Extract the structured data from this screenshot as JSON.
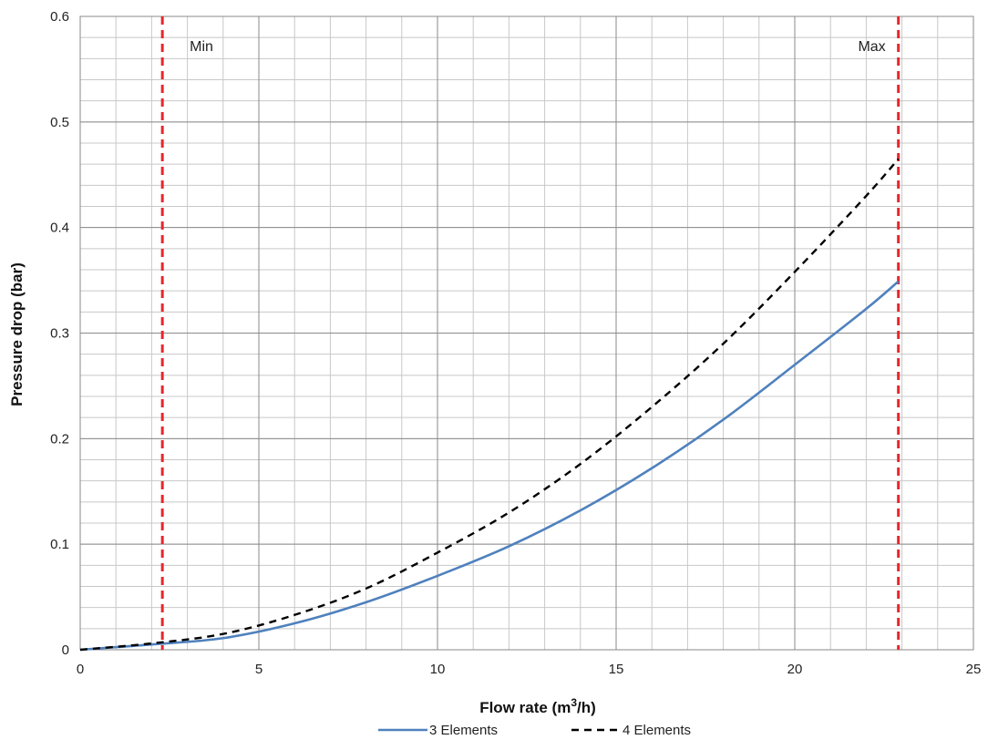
{
  "chart_data": {
    "type": "line",
    "xlabel_main": "Flow rate (m",
    "xlabel_sup": "3",
    "xlabel_end": "/h)",
    "ylabel": "Pressure drop (bar)",
    "xlim": [
      0,
      25
    ],
    "ylim": [
      0,
      0.6
    ],
    "x_ticks": [
      "0",
      "5",
      "10",
      "15",
      "20",
      "25"
    ],
    "y_ticks": [
      "0",
      "0.1",
      "0.2",
      "0.3",
      "0.4",
      "0.5",
      "0.6"
    ],
    "x_minor_step": 1,
    "y_minor_step": 0.02,
    "grid": true,
    "legend_position": "bottom-center",
    "series": [
      {
        "name": "3 Elements",
        "color": "#4f81bd",
        "style": "solid",
        "x": [
          0,
          2,
          4,
          6,
          8,
          10,
          12,
          14,
          16,
          18,
          20,
          22,
          22.9
        ],
        "y": [
          0,
          0.005,
          0.011,
          0.025,
          0.045,
          0.07,
          0.098,
          0.132,
          0.172,
          0.218,
          0.27,
          0.323,
          0.349
        ]
      },
      {
        "name": "4 Elements",
        "color": "#000000",
        "style": "dashed",
        "x": [
          0,
          2,
          4,
          6,
          8,
          10,
          12,
          14,
          16,
          18,
          20,
          22,
          22.9
        ],
        "y": [
          0,
          0.006,
          0.015,
          0.033,
          0.058,
          0.092,
          0.13,
          0.176,
          0.23,
          0.29,
          0.358,
          0.43,
          0.465
        ]
      }
    ],
    "reference_lines": [
      {
        "label": "Min",
        "x": 2.3,
        "color": "#e8262b",
        "style": "dashed"
      },
      {
        "label": "Max",
        "x": 22.9,
        "color": "#e8262b",
        "style": "dashed"
      }
    ]
  }
}
